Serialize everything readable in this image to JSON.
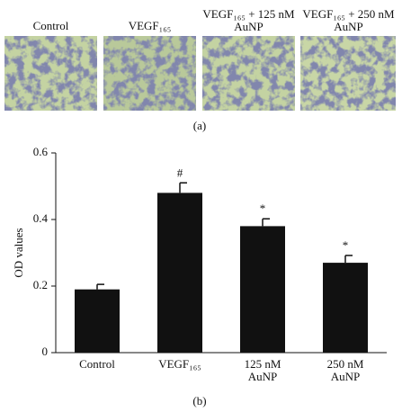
{
  "panel_a": {
    "labels": [
      "Control",
      "VEGF₁₆₅",
      "VEGF₁₆₅ + 125 nM AuNP",
      "VEGF₁₆₅ + 250 nM AuNP"
    ],
    "caption": "(a)"
  },
  "chart_data": {
    "type": "bar",
    "caption": "(b)",
    "y_label": "OD values",
    "categories": [
      "Control",
      "VEGF₁₆₅",
      "125 nM AuNP",
      "250 nM AuNP"
    ],
    "values": [
      0.19,
      0.48,
      0.38,
      0.27
    ],
    "errors": [
      0.015,
      0.03,
      0.022,
      0.022
    ],
    "annotations": [
      null,
      "#",
      "*",
      "*"
    ],
    "color": "#111111",
    "ylim": [
      0,
      0.6
    ],
    "yticks": [
      0,
      0.2,
      0.4,
      0.6
    ]
  }
}
